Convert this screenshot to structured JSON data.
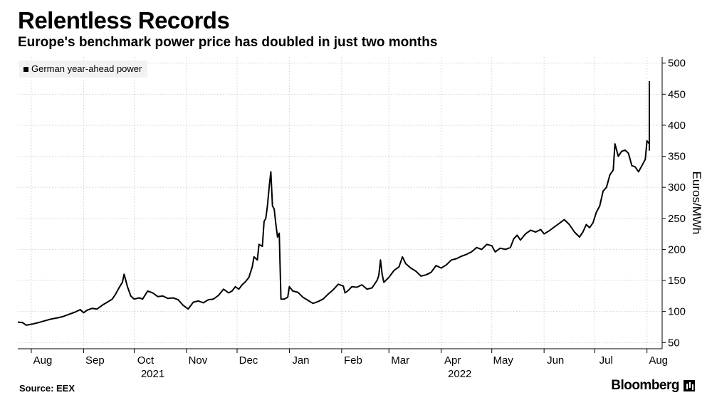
{
  "header": {
    "title": "Relentless Records",
    "subtitle": "Europe's benchmark power price has doubled in just two months"
  },
  "footer": {
    "source": "Source: EEX",
    "brand": "Bloomberg"
  },
  "colors": {
    "line": "#000000",
    "grid": "#cfcfcf",
    "legend_bg": "#f2f2f2"
  },
  "chart_data": {
    "type": "line",
    "ylabel": "Euros/MWh",
    "ylim": [
      40,
      510
    ],
    "yticks": [
      50,
      100,
      150,
      200,
      250,
      300,
      350,
      400,
      450,
      500
    ],
    "xlim": [
      "2021-07-24",
      "2022-08-10"
    ],
    "month_ticks": [
      {
        "label": "Aug",
        "date": "2021-08-01"
      },
      {
        "label": "Sep",
        "date": "2021-09-01"
      },
      {
        "label": "Oct",
        "date": "2021-10-01"
      },
      {
        "label": "Nov",
        "date": "2021-11-01"
      },
      {
        "label": "Dec",
        "date": "2021-12-01"
      },
      {
        "label": "Jan",
        "date": "2022-01-01"
      },
      {
        "label": "Feb",
        "date": "2022-02-01"
      },
      {
        "label": "Mar",
        "date": "2022-03-01"
      },
      {
        "label": "Apr",
        "date": "2022-04-01"
      },
      {
        "label": "May",
        "date": "2022-05-01"
      },
      {
        "label": "Jun",
        "date": "2022-06-01"
      },
      {
        "label": "Jul",
        "date": "2022-07-01"
      },
      {
        "label": "Aug",
        "date": "2022-08-01"
      }
    ],
    "year_labels": [
      {
        "label": "2021",
        "date": "2021-10-12"
      },
      {
        "label": "2022",
        "date": "2022-04-12"
      }
    ],
    "legend": [
      "German year-ahead power"
    ],
    "series": [
      {
        "name": "German year-ahead power",
        "points": [
          [
            "2021-07-24",
            83
          ],
          [
            "2021-07-27",
            82
          ],
          [
            "2021-07-29",
            78
          ],
          [
            "2021-08-02",
            80
          ],
          [
            "2021-08-05",
            82
          ],
          [
            "2021-08-09",
            85
          ],
          [
            "2021-08-13",
            88
          ],
          [
            "2021-08-17",
            90
          ],
          [
            "2021-08-20",
            92
          ],
          [
            "2021-08-24",
            96
          ],
          [
            "2021-08-27",
            99
          ],
          [
            "2021-08-30",
            103
          ],
          [
            "2021-09-01",
            98
          ],
          [
            "2021-09-03",
            102
          ],
          [
            "2021-09-06",
            105
          ],
          [
            "2021-09-09",
            104
          ],
          [
            "2021-09-12",
            110
          ],
          [
            "2021-09-15",
            115
          ],
          [
            "2021-09-18",
            120
          ],
          [
            "2021-09-20",
            128
          ],
          [
            "2021-09-22",
            138
          ],
          [
            "2021-09-24",
            147
          ],
          [
            "2021-09-25",
            160
          ],
          [
            "2021-09-27",
            140
          ],
          [
            "2021-09-29",
            125
          ],
          [
            "2021-10-01",
            120
          ],
          [
            "2021-10-04",
            122
          ],
          [
            "2021-10-06",
            120
          ],
          [
            "2021-10-09",
            133
          ],
          [
            "2021-10-12",
            130
          ],
          [
            "2021-10-15",
            124
          ],
          [
            "2021-10-18",
            125
          ],
          [
            "2021-10-21",
            121
          ],
          [
            "2021-10-24",
            122
          ],
          [
            "2021-10-27",
            119
          ],
          [
            "2021-10-30",
            110
          ],
          [
            "2021-11-02",
            104
          ],
          [
            "2021-11-05",
            115
          ],
          [
            "2021-11-08",
            117
          ],
          [
            "2021-11-11",
            114
          ],
          [
            "2021-11-14",
            119
          ],
          [
            "2021-11-17",
            120
          ],
          [
            "2021-11-20",
            126
          ],
          [
            "2021-11-23",
            136
          ],
          [
            "2021-11-26",
            130
          ],
          [
            "2021-11-28",
            133
          ],
          [
            "2021-11-30",
            140
          ],
          [
            "2021-12-02",
            136
          ],
          [
            "2021-12-04",
            143
          ],
          [
            "2021-12-06",
            148
          ],
          [
            "2021-12-08",
            155
          ],
          [
            "2021-12-10",
            172
          ],
          [
            "2021-12-11",
            188
          ],
          [
            "2021-12-13",
            183
          ],
          [
            "2021-12-14",
            208
          ],
          [
            "2021-12-16",
            205
          ],
          [
            "2021-12-17",
            245
          ],
          [
            "2021-12-18",
            250
          ],
          [
            "2021-12-19",
            270
          ],
          [
            "2021-12-20",
            300
          ],
          [
            "2021-12-21",
            325
          ],
          [
            "2021-12-22",
            270
          ],
          [
            "2021-12-23",
            265
          ],
          [
            "2021-12-24",
            240
          ],
          [
            "2021-12-25",
            220
          ],
          [
            "2021-12-26",
            226
          ],
          [
            "2021-12-27",
            120
          ],
          [
            "2021-12-29",
            120
          ],
          [
            "2021-12-31",
            123
          ],
          [
            "2022-01-01",
            140
          ],
          [
            "2022-01-03",
            133
          ],
          [
            "2022-01-06",
            131
          ],
          [
            "2022-01-09",
            123
          ],
          [
            "2022-01-12",
            118
          ],
          [
            "2022-01-15",
            113
          ],
          [
            "2022-01-18",
            116
          ],
          [
            "2022-01-21",
            120
          ],
          [
            "2022-01-24",
            128
          ],
          [
            "2022-01-27",
            135
          ],
          [
            "2022-01-30",
            144
          ],
          [
            "2022-02-02",
            141
          ],
          [
            "2022-02-03",
            130
          ],
          [
            "2022-02-05",
            134
          ],
          [
            "2022-02-07",
            140
          ],
          [
            "2022-02-10",
            139
          ],
          [
            "2022-02-13",
            143
          ],
          [
            "2022-02-16",
            136
          ],
          [
            "2022-02-19",
            138
          ],
          [
            "2022-02-22",
            150
          ],
          [
            "2022-02-23",
            158
          ],
          [
            "2022-02-24",
            183
          ],
          [
            "2022-02-25",
            160
          ],
          [
            "2022-02-26",
            147
          ],
          [
            "2022-03-01",
            155
          ],
          [
            "2022-03-04",
            166
          ],
          [
            "2022-03-07",
            172
          ],
          [
            "2022-03-09",
            188
          ],
          [
            "2022-03-11",
            177
          ],
          [
            "2022-03-14",
            170
          ],
          [
            "2022-03-17",
            165
          ],
          [
            "2022-03-20",
            157
          ],
          [
            "2022-03-23",
            159
          ],
          [
            "2022-03-26",
            163
          ],
          [
            "2022-03-29",
            174
          ],
          [
            "2022-04-01",
            170
          ],
          [
            "2022-04-04",
            175
          ],
          [
            "2022-04-07",
            183
          ],
          [
            "2022-04-10",
            185
          ],
          [
            "2022-04-13",
            189
          ],
          [
            "2022-04-16",
            192
          ],
          [
            "2022-04-19",
            196
          ],
          [
            "2022-04-22",
            203
          ],
          [
            "2022-04-25",
            200
          ],
          [
            "2022-04-28",
            208
          ],
          [
            "2022-05-01",
            206
          ],
          [
            "2022-05-03",
            196
          ],
          [
            "2022-05-06",
            202
          ],
          [
            "2022-05-09",
            200
          ],
          [
            "2022-05-12",
            203
          ],
          [
            "2022-05-14",
            217
          ],
          [
            "2022-05-16",
            223
          ],
          [
            "2022-05-18",
            215
          ],
          [
            "2022-05-21",
            225
          ],
          [
            "2022-05-24",
            231
          ],
          [
            "2022-05-27",
            228
          ],
          [
            "2022-05-30",
            232
          ],
          [
            "2022-06-01",
            225
          ],
          [
            "2022-06-04",
            230
          ],
          [
            "2022-06-07",
            236
          ],
          [
            "2022-06-10",
            242
          ],
          [
            "2022-06-13",
            248
          ],
          [
            "2022-06-16",
            240
          ],
          [
            "2022-06-19",
            228
          ],
          [
            "2022-06-22",
            220
          ],
          [
            "2022-06-24",
            228
          ],
          [
            "2022-06-26",
            240
          ],
          [
            "2022-06-28",
            235
          ],
          [
            "2022-06-30",
            243
          ],
          [
            "2022-07-02",
            260
          ],
          [
            "2022-07-04",
            270
          ],
          [
            "2022-07-06",
            294
          ],
          [
            "2022-07-08",
            300
          ],
          [
            "2022-07-10",
            320
          ],
          [
            "2022-07-12",
            328
          ],
          [
            "2022-07-13",
            370
          ],
          [
            "2022-07-15",
            350
          ],
          [
            "2022-07-17",
            358
          ],
          [
            "2022-07-19",
            360
          ],
          [
            "2022-07-21",
            355
          ],
          [
            "2022-07-23",
            335
          ],
          [
            "2022-07-25",
            333
          ],
          [
            "2022-07-27",
            325
          ],
          [
            "2022-07-29",
            335
          ],
          [
            "2022-07-31",
            345
          ],
          [
            "2022-08-01",
            375
          ],
          [
            "2022-08-03",
            370
          ],
          [
            "2022-08-05",
            360
          ],
          [
            "2022-08-07",
            385
          ],
          [
            "2022-08-09",
            400
          ],
          [
            "2022-08-11",
            403
          ],
          [
            "2022-08-13",
            407
          ],
          [
            "2022-08-15",
            407
          ],
          [
            "2022-08-17",
            450
          ],
          [
            "2022-08-19",
            462
          ],
          [
            "2022-08-21",
            471
          ]
        ]
      }
    ]
  }
}
